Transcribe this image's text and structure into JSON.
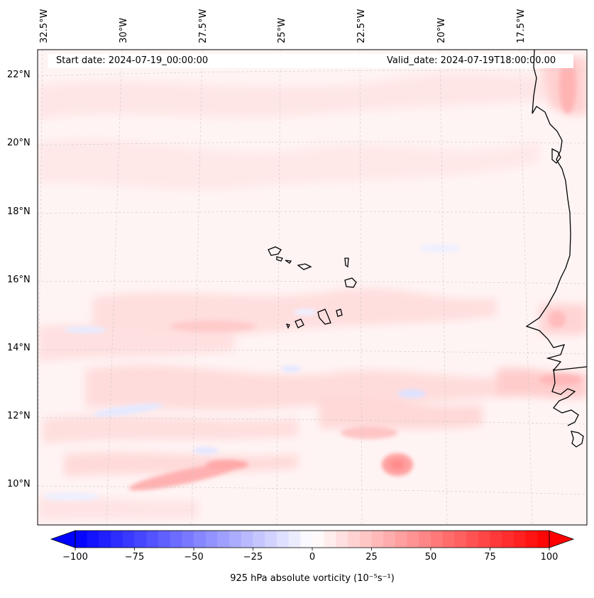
{
  "header": {
    "start_date": "Start date: 2024-07-19_00:00:00",
    "valid_date": "Valid_date: 2024-07-19T18:00:00.00"
  },
  "map": {
    "region": "Cape Verde / West African coast",
    "lon_labels": [
      "32.5°W",
      "30°W",
      "27.5°W",
      "25°W",
      "22.5°W",
      "20°W",
      "17.5°W"
    ],
    "lat_labels": [
      "22°N",
      "20°N",
      "18°N",
      "16°N",
      "14°N",
      "12°N",
      "10°N"
    ]
  },
  "colorbar": {
    "label": "925 hPa absolute vorticity (10⁻⁵s⁻¹)",
    "ticks": [
      "−100",
      "−75",
      "−50",
      "−25",
      "0",
      "25",
      "50",
      "75",
      "100"
    ],
    "tick_values": [
      -100,
      -75,
      -50,
      -25,
      0,
      25,
      50,
      75,
      100
    ],
    "min": -100,
    "max": 100,
    "colormap": "bwr",
    "low_color": "#0000ff",
    "mid_color": "#ffffff",
    "high_color": "#ff0000"
  }
}
